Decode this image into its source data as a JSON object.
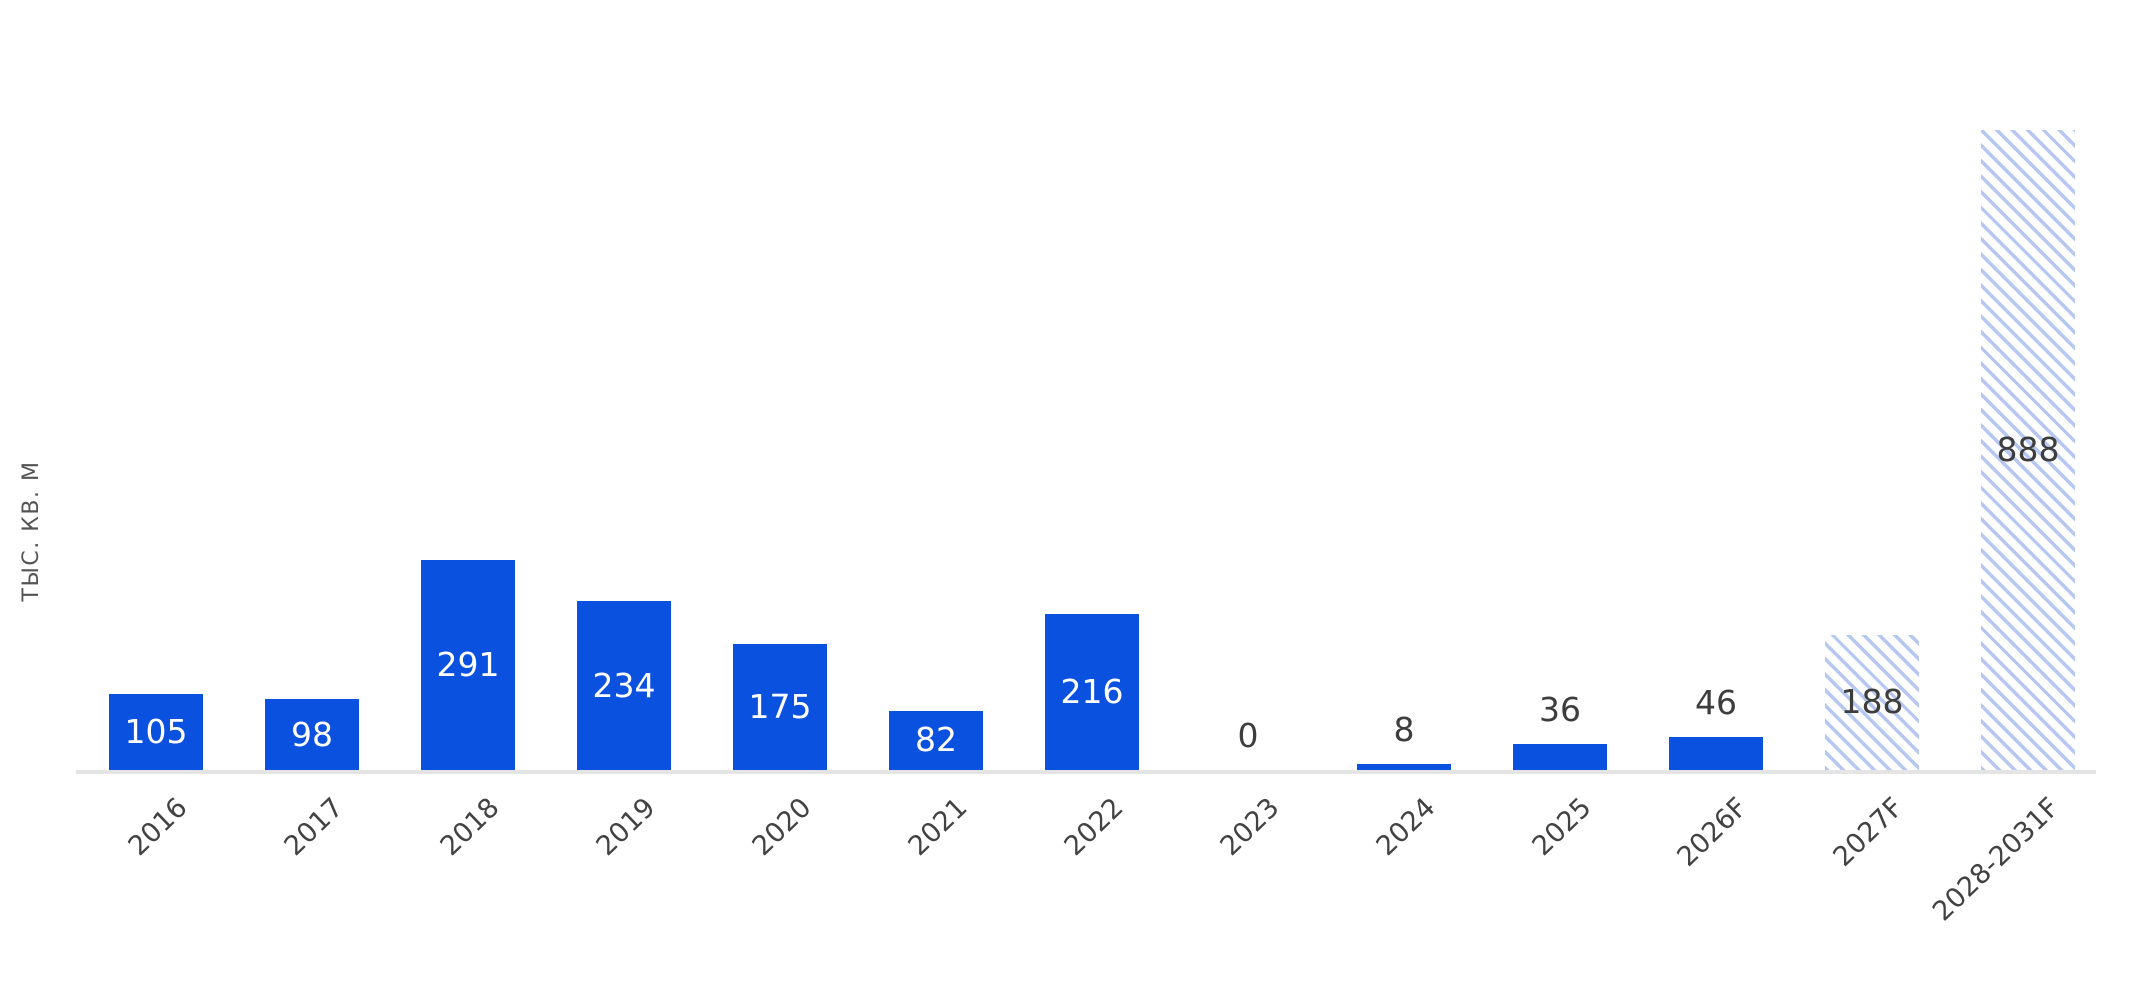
{
  "chart_data": {
    "type": "bar",
    "title": "",
    "xlabel": "",
    "ylabel": "тыс. кв. м",
    "categories": [
      "2016",
      "2017",
      "2018",
      "2019",
      "2020",
      "2021",
      "2022",
      "2023",
      "2024",
      "2025",
      "2026F",
      "2027F",
      "2028-2031F"
    ],
    "values": [
      105,
      98,
      291,
      234,
      175,
      82,
      216,
      0,
      8,
      36,
      46,
      188,
      888
    ],
    "bar_styles": [
      "solid",
      "solid",
      "solid",
      "solid",
      "solid",
      "solid",
      "solid",
      "solid",
      "solid",
      "solid",
      "solid",
      "hatched",
      "hatched"
    ],
    "label_placement": [
      "inside",
      "inside",
      "inside",
      "inside",
      "inside",
      "inside",
      "inside",
      "outside",
      "outside",
      "outside",
      "outside",
      "inside",
      "inside"
    ],
    "ylim": [
      0,
      888
    ],
    "grid": false,
    "legend": "none",
    "colors": {
      "bar_solid": "#0b51e0",
      "bar_hatch_stripe": "#b6c8f1",
      "label_inside_solid": "#ffffff",
      "label_dark": "#3d3d3d",
      "tick_label": "#424242",
      "axis_title": "#545454",
      "axis_line": "#e4e4e4",
      "background": "#ffffff"
    }
  }
}
